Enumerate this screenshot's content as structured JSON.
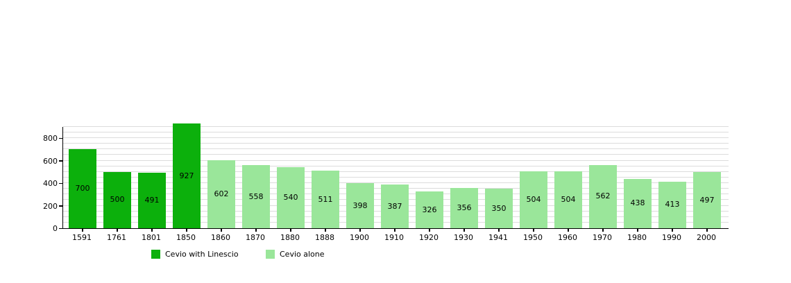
{
  "chart_data": {
    "type": "bar",
    "categories": [
      "1591",
      "1761",
      "1801",
      "1850",
      "1860",
      "1870",
      "1880",
      "1888",
      "1900",
      "1910",
      "1920",
      "1930",
      "1941",
      "1950",
      "1960",
      "1970",
      "1980",
      "1990",
      "2000"
    ],
    "bars": [
      {
        "year": "1591",
        "value": 700,
        "series": "with_linescio"
      },
      {
        "year": "1761",
        "value": 500,
        "series": "with_linescio"
      },
      {
        "year": "1801",
        "value": 491,
        "series": "with_linescio"
      },
      {
        "year": "1850",
        "value": 927,
        "series": "with_linescio"
      },
      {
        "year": "1860",
        "value": 602,
        "series": "alone"
      },
      {
        "year": "1870",
        "value": 558,
        "series": "alone"
      },
      {
        "year": "1880",
        "value": 540,
        "series": "alone"
      },
      {
        "year": "1888",
        "value": 511,
        "series": "alone"
      },
      {
        "year": "1900",
        "value": 398,
        "series": "alone"
      },
      {
        "year": "1910",
        "value": 387,
        "series": "alone"
      },
      {
        "year": "1920",
        "value": 326,
        "series": "alone"
      },
      {
        "year": "1930",
        "value": 356,
        "series": "alone"
      },
      {
        "year": "1941",
        "value": 350,
        "series": "alone"
      },
      {
        "year": "1950",
        "value": 504,
        "series": "alone"
      },
      {
        "year": "1960",
        "value": 504,
        "series": "alone"
      },
      {
        "year": "1970",
        "value": 562,
        "series": "alone"
      },
      {
        "year": "1980",
        "value": 438,
        "series": "alone"
      },
      {
        "year": "1990",
        "value": 413,
        "series": "alone"
      },
      {
        "year": "2000",
        "value": 497,
        "series": "alone"
      }
    ],
    "series_colors": {
      "with_linescio": "#0cb00c",
      "alone": "#9ae69a"
    },
    "legend": [
      {
        "label": "Cevio with Linescio",
        "series": "with_linescio"
      },
      {
        "label": "Cevio alone",
        "series": "alone"
      }
    ],
    "yticks": [
      0,
      200,
      400,
      600,
      800
    ],
    "gridline_step": 50,
    "grid_max": 900,
    "ylim": [
      0,
      900
    ],
    "grid": true,
    "legend_position": "bottom"
  }
}
